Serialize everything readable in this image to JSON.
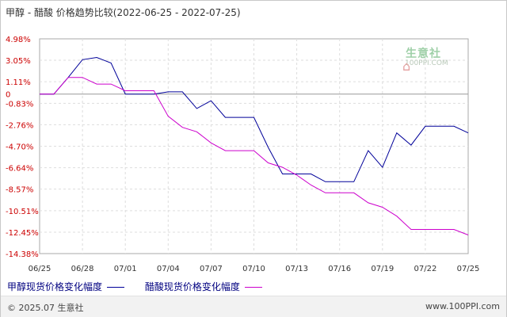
{
  "title": "甲醇 - 醋酸 价格趋势比较(2022-06-25 - 2022-07-25)",
  "footer": {
    "copyright": "© 2025.07 生意社",
    "site": "www.100PPI.com"
  },
  "watermark": {
    "name": "生意社",
    "url": "100PPI.COM",
    "icon": "house-icon"
  },
  "colors": {
    "series_methanol": "#000099",
    "series_acetic": "#cc00cc",
    "ytick_label": "#cc0000",
    "grid": "#dddddd",
    "zero_line": "#999999"
  },
  "chart_data": {
    "type": "line",
    "title": "甲醇 - 醋酸 价格趋势比较(2022-06-25 - 2022-07-25)",
    "xlabel": "",
    "ylabel": "",
    "x": [
      "2022-06-25",
      "2022-06-26",
      "2022-06-27",
      "2022-06-28",
      "2022-06-29",
      "2022-06-30",
      "2022-07-01",
      "2022-07-02",
      "2022-07-03",
      "2022-07-04",
      "2022-07-05",
      "2022-07-06",
      "2022-07-07",
      "2022-07-08",
      "2022-07-09",
      "2022-07-10",
      "2022-07-11",
      "2022-07-12",
      "2022-07-13",
      "2022-07-14",
      "2022-07-15",
      "2022-07-16",
      "2022-07-17",
      "2022-07-18",
      "2022-07-19",
      "2022-07-20",
      "2022-07-21",
      "2022-07-22",
      "2022-07-23",
      "2022-07-24",
      "2022-07-25"
    ],
    "xticks": [
      "06/25",
      "06/28",
      "07/01",
      "07/04",
      "07/07",
      "07/10",
      "07/13",
      "07/16",
      "07/19",
      "07/22",
      "07/25"
    ],
    "yticks": [
      4.98,
      3.05,
      1.11,
      0,
      -0.83,
      -2.76,
      -4.7,
      -6.64,
      -8.57,
      -10.51,
      -12.45,
      -14.38
    ],
    "ytick_labels": [
      "4.98%",
      "3.05%",
      "1.11%",
      "0",
      "-0.83%",
      "-2.76%",
      "-4.70%",
      "-6.64%",
      "-8.57%",
      "-10.51%",
      "-12.45%",
      "-14.38%"
    ],
    "ylim": [
      -14.38,
      4.98
    ],
    "grid": true,
    "legend_position": "bottom-left",
    "series": [
      {
        "name": "甲醇现货价格变化幅度",
        "values": [
          0,
          0,
          1.5,
          3.1,
          3.3,
          2.8,
          0,
          0,
          0,
          0.2,
          0.2,
          -1.3,
          -0.6,
          -2.1,
          -2.1,
          -2.1,
          -4.8,
          -7.2,
          -7.2,
          -7.2,
          -7.9,
          -7.9,
          -7.9,
          -5.1,
          -6.6,
          -3.5,
          -4.6,
          -2.9,
          -2.9,
          -2.9,
          -3.5
        ]
      },
      {
        "name": "醋酸现货价格变化幅度",
        "values": [
          0,
          0,
          1.5,
          1.5,
          0.9,
          0.9,
          0.3,
          0.3,
          0.3,
          -2.0,
          -3.0,
          -3.4,
          -4.4,
          -5.1,
          -5.1,
          -5.1,
          -6.2,
          -6.6,
          -7.3,
          -8.2,
          -8.9,
          -8.9,
          -8.9,
          -9.8,
          -10.2,
          -11.0,
          -12.2,
          -12.2,
          -12.2,
          -12.2,
          -12.7
        ]
      }
    ]
  }
}
